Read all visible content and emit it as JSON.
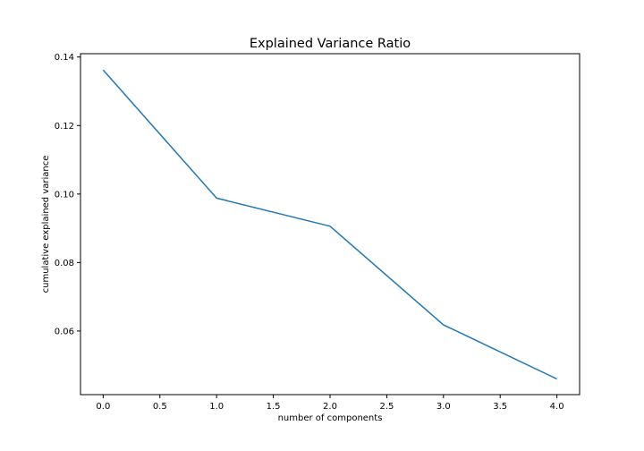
{
  "chart_data": {
    "type": "line",
    "title": "Explained Variance Ratio",
    "xlabel": "number of components",
    "ylabel": "cumulative explained variance",
    "x": [
      0,
      1,
      2,
      3,
      4
    ],
    "series": [
      {
        "values": [
          0.1362,
          0.0988,
          0.0906,
          0.0618,
          0.046
        ],
        "color": "#1f77b4"
      }
    ],
    "xlim": [
      -0.2,
      4.2
    ],
    "ylim": [
      0.04143,
      0.14097
    ],
    "xticks": [
      0.0,
      0.5,
      1.0,
      1.5,
      2.0,
      2.5,
      3.0,
      3.5,
      4.0
    ],
    "xtick_labels": [
      "0.0",
      "0.5",
      "1.0",
      "1.5",
      "2.0",
      "2.5",
      "3.0",
      "3.5",
      "4.0"
    ],
    "yticks": [
      0.06,
      0.08,
      0.1,
      0.12,
      0.14
    ],
    "ytick_labels": [
      "0.06",
      "0.08",
      "0.10",
      "0.12",
      "0.14"
    ],
    "grid": false,
    "legend": false
  }
}
